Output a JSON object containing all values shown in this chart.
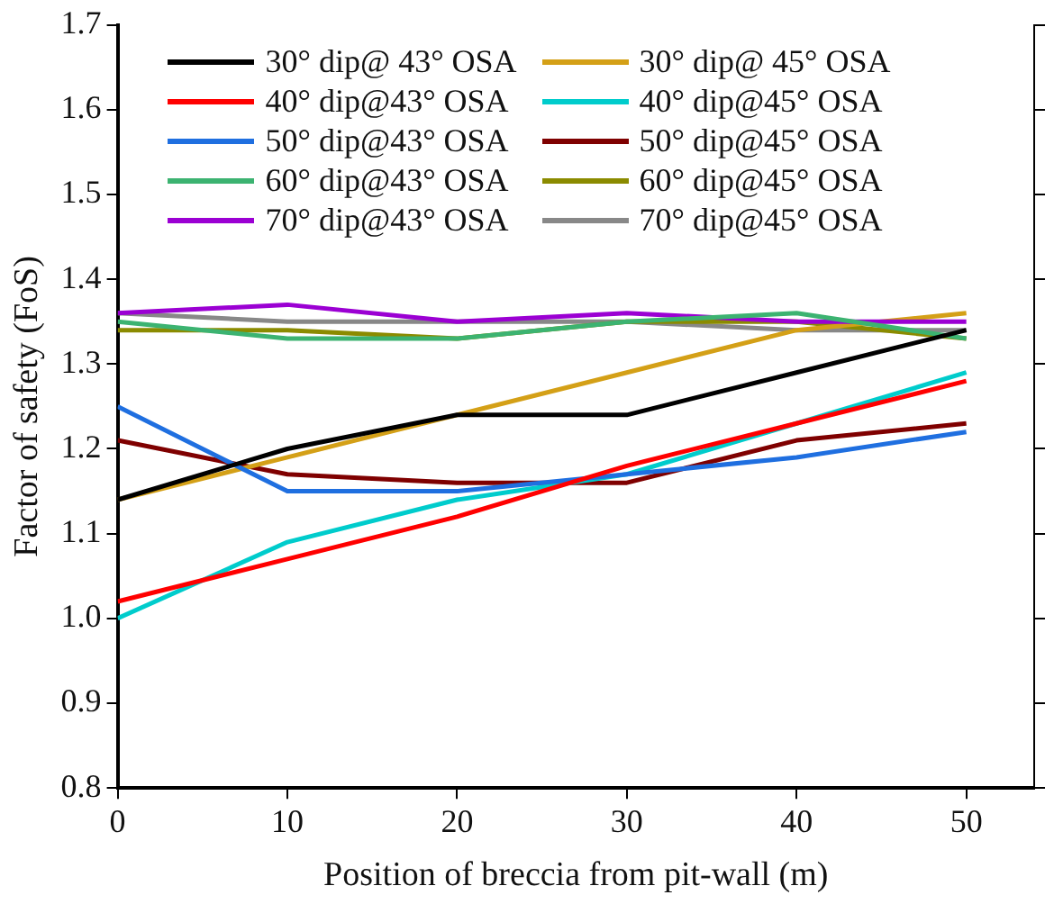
{
  "chart_data": {
    "type": "line",
    "xlabel": "Position of breccia from pit-wall (m)",
    "ylabel": "Factor of safety (FoS)",
    "x": [
      0,
      10,
      20,
      30,
      40,
      50
    ],
    "xlim": [
      0,
      54
    ],
    "xticks": [
      0,
      10,
      20,
      30,
      40,
      50
    ],
    "ylim": [
      0.8,
      1.7
    ],
    "yticks": [
      {
        "value": 0.8,
        "label": "0.8"
      },
      {
        "value": 0.9,
        "label": "0.9"
      },
      {
        "value": 1.0,
        "label": "1.0"
      },
      {
        "value": 1.1,
        "label": "1.1"
      },
      {
        "value": 1.2,
        "label": "1.2"
      },
      {
        "value": 1.3,
        "label": "1.3"
      },
      {
        "value": 1.4,
        "label": "1.4"
      },
      {
        "value": 1.5,
        "label": "1.5"
      },
      {
        "value": 1.6,
        "label": "1.6"
      },
      {
        "value": 1.7,
        "label": "1.7"
      }
    ],
    "grid": false,
    "legend": "top",
    "marker": "none",
    "line_style": "solid",
    "series": [
      {
        "name": "30° dip@ 43° OSA",
        "color": "#000000",
        "values": [
          1.14,
          1.2,
          1.24,
          1.24,
          1.29,
          1.34
        ]
      },
      {
        "name": "40° dip@43° OSA",
        "color": "#ff0000",
        "values": [
          1.02,
          1.07,
          1.12,
          1.18,
          1.23,
          1.28
        ]
      },
      {
        "name": "50° dip@43° OSA",
        "color": "#1f6fe0",
        "values": [
          1.25,
          1.15,
          1.15,
          1.17,
          1.19,
          1.22
        ]
      },
      {
        "name": "60° dip@43° OSA",
        "color": "#3cb371",
        "values": [
          1.35,
          1.33,
          1.33,
          1.35,
          1.36,
          1.33
        ]
      },
      {
        "name": "70° dip@43° OSA",
        "color": "#9b00d3",
        "values": [
          1.36,
          1.37,
          1.35,
          1.36,
          1.35,
          1.35
        ]
      },
      {
        "name": "30° dip@ 45° OSA",
        "color": "#d4a017",
        "values": [
          1.14,
          1.19,
          1.24,
          1.29,
          1.34,
          1.36
        ]
      },
      {
        "name": "40° dip@45° OSA",
        "color": "#00cccc",
        "values": [
          1.0,
          1.09,
          1.14,
          1.17,
          1.23,
          1.29
        ]
      },
      {
        "name": "50° dip@45° OSA",
        "color": "#7f0000",
        "values": [
          1.21,
          1.17,
          1.16,
          1.16,
          1.21,
          1.23
        ]
      },
      {
        "name": "60° dip@45° OSA",
        "color": "#8b8b00",
        "values": [
          1.34,
          1.34,
          1.33,
          1.35,
          1.35,
          1.33
        ]
      },
      {
        "name": "70° dip@45° OSA",
        "color": "#888888",
        "values": [
          1.36,
          1.35,
          1.35,
          1.35,
          1.34,
          1.34
        ]
      }
    ]
  }
}
